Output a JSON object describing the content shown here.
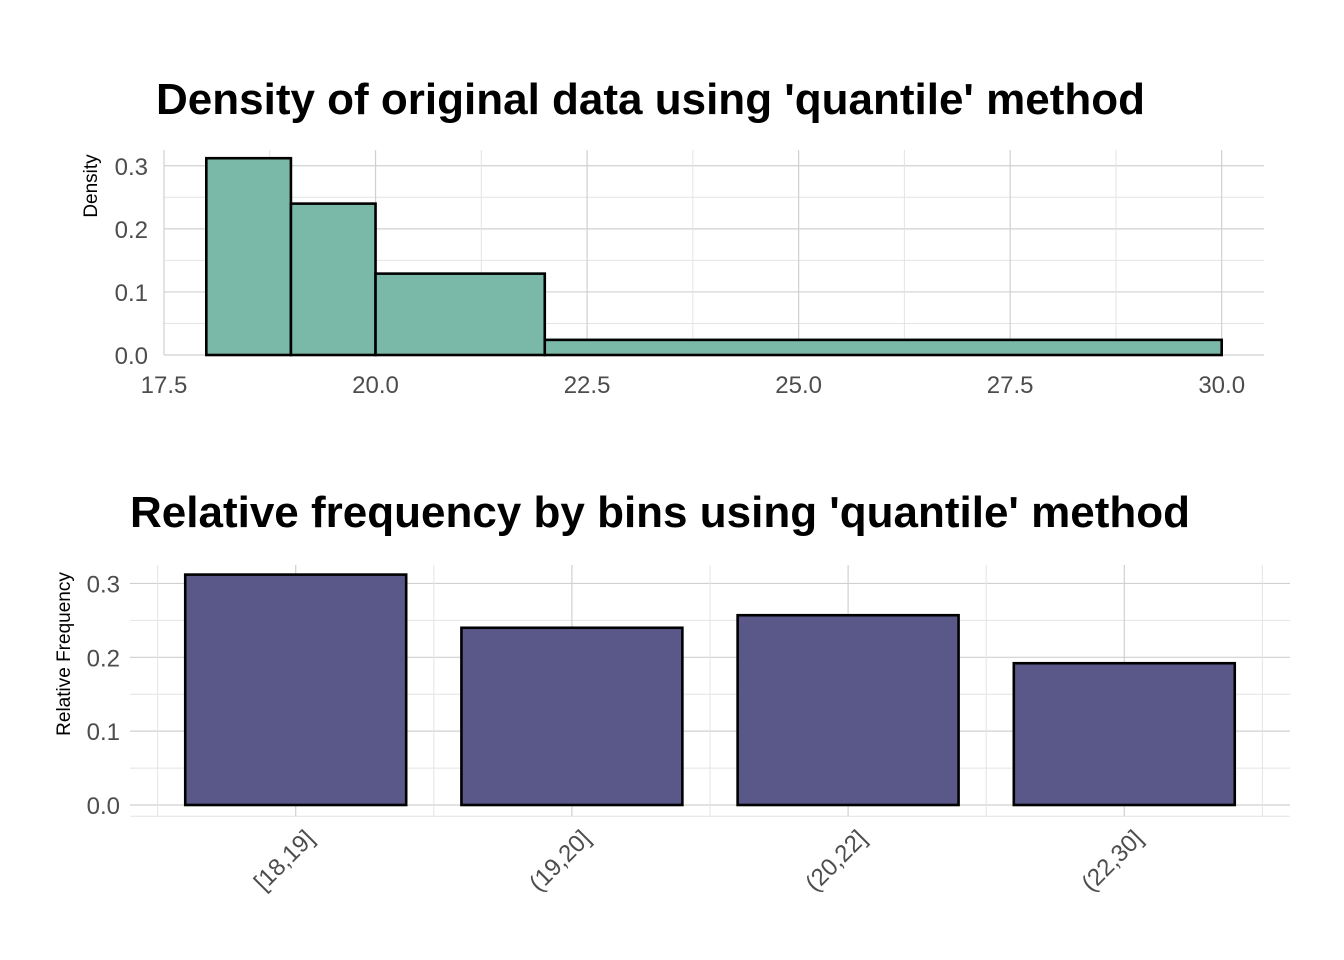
{
  "chart_data": [
    {
      "type": "histogram",
      "title": "Density of original data using 'quantile' method",
      "ylabel": "Density",
      "xlabel": "",
      "xlim": [
        17.5,
        30.5
      ],
      "ylim": [
        0,
        0.325
      ],
      "x_ticks": [
        "17.5",
        "20.0",
        "22.5",
        "25.0",
        "27.5",
        "30.0"
      ],
      "y_ticks": [
        "0.0",
        "0.1",
        "0.2",
        "0.3"
      ],
      "bins": [
        {
          "x0": 18,
          "x1": 19,
          "value": 0.312
        },
        {
          "x0": 19,
          "x1": 20,
          "value": 0.24
        },
        {
          "x0": 20,
          "x1": 22,
          "value": 0.129
        },
        {
          "x0": 22,
          "x1": 30,
          "value": 0.024
        }
      ],
      "fill_color": "#7ab8a7",
      "grid": true,
      "legend": "none"
    },
    {
      "type": "bar",
      "title": "Relative frequency by bins using 'quantile' method",
      "ylabel": "Relative Frequency",
      "xlabel": "",
      "ylim": [
        0,
        0.325
      ],
      "categories": [
        "[18,19]",
        "(19,20]",
        "(20,22]",
        "(22,30]"
      ],
      "values": [
        0.312,
        0.24,
        0.257,
        0.192
      ],
      "y_ticks": [
        "0.0",
        "0.1",
        "0.2",
        "0.3"
      ],
      "fill_color": "#5a5888",
      "grid": true,
      "legend": "none"
    }
  ]
}
